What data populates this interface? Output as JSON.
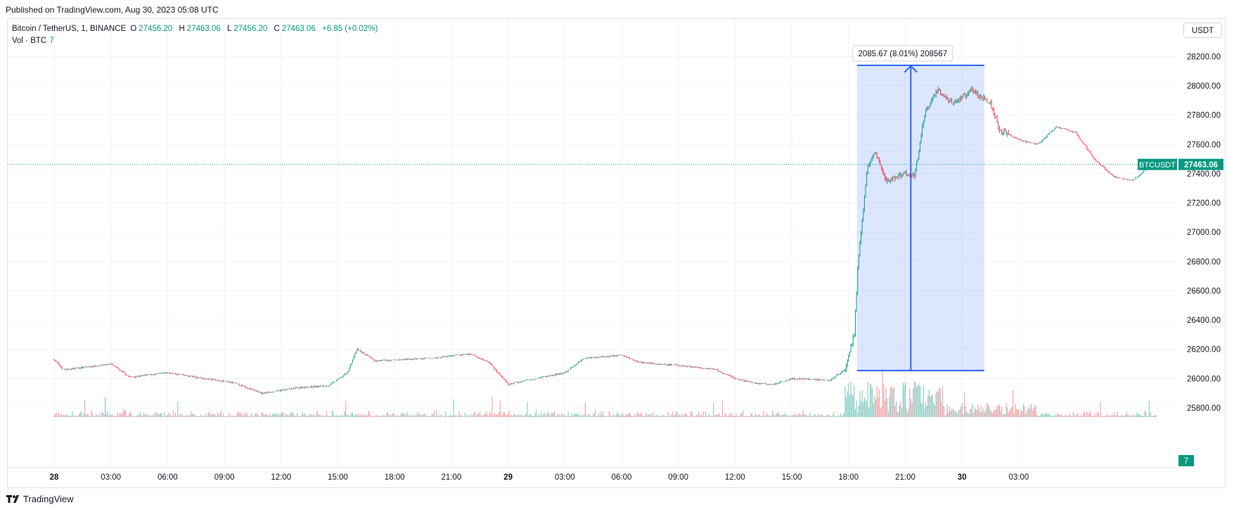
{
  "header": {
    "published": "Published on TradingView.com, Aug 30, 2023 05:08 UTC"
  },
  "legend": {
    "symbol": "Bitcoin / TetherUS, 1, BINANCE",
    "o_label": "O",
    "o_value": "27456.20",
    "h_label": "H",
    "h_value": "27463.06",
    "l_label": "L",
    "l_value": "27456.20",
    "c_label": "C",
    "c_value": "27463.06",
    "change": "+6.85 (+0.02%)",
    "vol_label": "Vol · BTC",
    "vol_value": "7"
  },
  "axis": {
    "unit_button": "USDT"
  },
  "footer": {
    "brand": "TradingView"
  },
  "colors": {
    "up": "#089981",
    "down": "#f23645",
    "grid": "#f0f3fa",
    "measure": "#2962ff"
  },
  "chart_data": {
    "type": "candlestick",
    "symbol": "BTCUSDT",
    "timeframe": "1",
    "y_ticks": [
      25800,
      26000,
      26200,
      26400,
      26600,
      26800,
      27000,
      27200,
      27400,
      27600,
      27800,
      28000,
      28200
    ],
    "y_tick_labels": [
      "25800.00",
      "26000.00",
      "26200.00",
      "26400.00",
      "26600.00",
      "26800.00",
      "27000.00",
      "27200.00",
      "27400.00",
      "27600.00",
      "27800.00",
      "28000.00",
      "28200.00"
    ],
    "ylim": [
      25650,
      28300
    ],
    "x_ticks": [
      "28",
      "03:00",
      "06:00",
      "09:00",
      "12:00",
      "15:00",
      "18:00",
      "21:00",
      "29",
      "03:00",
      "06:00",
      "09:00",
      "12:00",
      "15:00",
      "18:00",
      "21:00",
      "30",
      "03:00"
    ],
    "price_path": [
      {
        "t": 0,
        "p": 26130
      },
      {
        "t": 0.5,
        "p": 26060
      },
      {
        "t": 3,
        "p": 26100
      },
      {
        "t": 4,
        "p": 26010
      },
      {
        "t": 6,
        "p": 26040
      },
      {
        "t": 8,
        "p": 26000
      },
      {
        "t": 9.5,
        "p": 25970
      },
      {
        "t": 11,
        "p": 25900
      },
      {
        "t": 13,
        "p": 25940
      },
      {
        "t": 14.5,
        "p": 25950
      },
      {
        "t": 15.5,
        "p": 26040
      },
      {
        "t": 16,
        "p": 26200
      },
      {
        "t": 17,
        "p": 26120
      },
      {
        "t": 20,
        "p": 26140
      },
      {
        "t": 22,
        "p": 26170
      },
      {
        "t": 23,
        "p": 26110
      },
      {
        "t": 24,
        "p": 25960
      },
      {
        "t": 25,
        "p": 25990
      },
      {
        "t": 27,
        "p": 26040
      },
      {
        "t": 28,
        "p": 26140
      },
      {
        "t": 30,
        "p": 26160
      },
      {
        "t": 31,
        "p": 26110
      },
      {
        "t": 33,
        "p": 26090
      },
      {
        "t": 35,
        "p": 26060
      },
      {
        "t": 36,
        "p": 26000
      },
      {
        "t": 37,
        "p": 25970
      },
      {
        "t": 38,
        "p": 25960
      },
      {
        "t": 39,
        "p": 26000
      },
      {
        "t": 41,
        "p": 25990
      },
      {
        "t": 41.8,
        "p": 26060
      },
      {
        "t": 42.0,
        "p": 26150
      },
      {
        "t": 42.3,
        "p": 26300
      },
      {
        "t": 42.5,
        "p": 26800
      },
      {
        "t": 43.0,
        "p": 27450
      },
      {
        "t": 43.4,
        "p": 27550
      },
      {
        "t": 44.0,
        "p": 27350
      },
      {
        "t": 45.0,
        "p": 27400
      },
      {
        "t": 45.5,
        "p": 27380
      },
      {
        "t": 46,
        "p": 27800
      },
      {
        "t": 46.7,
        "p": 27980
      },
      {
        "t": 47.5,
        "p": 27880
      },
      {
        "t": 48.5,
        "p": 27970
      },
      {
        "t": 49.5,
        "p": 27880
      },
      {
        "t": 50,
        "p": 27700
      },
      {
        "t": 51,
        "p": 27630
      },
      {
        "t": 52,
        "p": 27600
      },
      {
        "t": 53,
        "p": 27720
      },
      {
        "t": 54,
        "p": 27680
      },
      {
        "t": 55,
        "p": 27500
      },
      {
        "t": 56,
        "p": 27380
      },
      {
        "t": 57,
        "p": 27350
      },
      {
        "t": 58,
        "p": 27463
      }
    ],
    "last_price_label": "BTCUSDT",
    "last_price": "27463.06",
    "last_volume": "7",
    "measure": {
      "from_price": 26055,
      "to_price": 28140,
      "from_time": 42.0,
      "to_time": 46.5,
      "label": "2085.67 (8.01%) 208567"
    }
  }
}
